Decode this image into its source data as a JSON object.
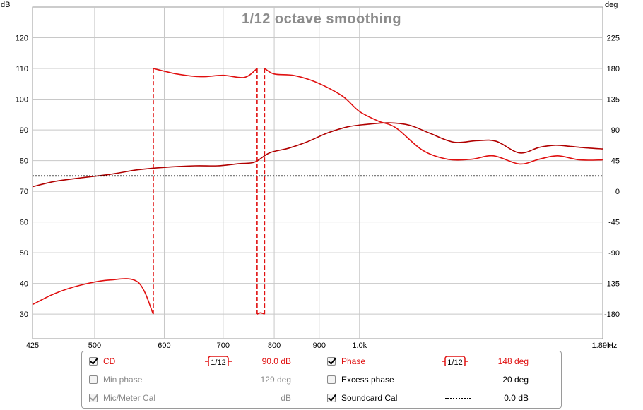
{
  "chart_data": {
    "type": "line",
    "title": "1/12 octave smoothing",
    "left_axis": {
      "unit": "dB",
      "ylim": [
        22,
        130
      ],
      "ticks": [
        120,
        110,
        100,
        90,
        80,
        70,
        60,
        50,
        40,
        30
      ]
    },
    "right_axis": {
      "unit": "deg",
      "ylim": [
        -180,
        180
      ],
      "ticks": [
        225,
        180,
        135,
        90,
        45,
        0,
        -45,
        -90,
        -135,
        -180
      ]
    },
    "x_axis": {
      "scale": "log",
      "unit": "Hz",
      "xlim": [
        425,
        1890
      ],
      "ticks": [
        {
          "v": 425,
          "label": "425"
        },
        {
          "v": 500,
          "label": "500"
        },
        {
          "v": 600,
          "label": "600"
        },
        {
          "v": 700,
          "label": "700"
        },
        {
          "v": 800,
          "label": "800"
        },
        {
          "v": 900,
          "label": "900"
        },
        {
          "v": 1000,
          "label": "1.0k"
        },
        {
          "v": 1890,
          "label": "1.89k"
        }
      ],
      "unit_label": "Hz"
    },
    "grid": true,
    "series": [
      {
        "name": "CD",
        "axis": "left",
        "color": "#b00000",
        "x": [
          425,
          450,
          480,
          520,
          560,
          600,
          650,
          690,
          730,
          760,
          790,
          830,
          870,
          920,
          970,
          1020,
          1080,
          1140,
          1200,
          1280,
          1360,
          1430,
          1520,
          1600,
          1670,
          1740,
          1800,
          1890
        ],
        "y": [
          71.5,
          73.2,
          74.3,
          75.5,
          77.0,
          77.8,
          78.3,
          78.3,
          79.0,
          79.5,
          82.5,
          84.0,
          86.0,
          89.0,
          91.0,
          91.8,
          92.3,
          91.5,
          89.0,
          86.0,
          86.5,
          86.3,
          82.5,
          84.3,
          85.0,
          84.6,
          84.2,
          83.8
        ]
      },
      {
        "name": "Phase",
        "axis": "right",
        "color": "#e01010",
        "segments": [
          {
            "x": [
              425,
              450,
              480,
              520,
              560,
              583
            ],
            "y": [
              -166,
              -150,
              -138,
              -130,
              -133,
              -180
            ],
            "dashed_end": true
          },
          {
            "x": [
              583,
              620,
              660,
              700,
              740,
              765
            ],
            "y": [
              180,
              172,
              168,
              170,
              167,
              180
            ],
            "dashed_start": true,
            "dashed_end": true
          },
          {
            "x": [
              765,
              772,
              780
            ],
            "y": [
              -180,
              -178,
              -180
            ],
            "dashed_start": true,
            "dashed_end": true
          },
          {
            "x": [
              780,
              800,
              840,
              880,
              920,
              960,
              1000,
              1050,
              1100,
              1180,
              1260,
              1340,
              1420,
              1520,
              1600,
              1680,
              1780,
              1890
            ],
            "y": [
              180,
              172,
              170,
              163,
              152,
              138,
              117,
              103,
              93,
              60,
              47,
              47,
              52,
              40,
              47,
              52,
              46,
              46
            ],
            "dashed_start": true
          }
        ]
      },
      {
        "name": "Soundcard Cal",
        "axis": "left",
        "color": "#000000",
        "style": "dotted",
        "x": [
          425,
          1890
        ],
        "y": [
          75,
          75
        ]
      }
    ]
  },
  "legend": {
    "rows": [
      {
        "left": {
          "label": "CD",
          "checked": true,
          "enabled": true,
          "color": "red",
          "smoothing": "1/12",
          "value": "90.0 dB",
          "value_color": "red"
        },
        "right": {
          "label": "Phase",
          "checked": true,
          "enabled": true,
          "color": "red",
          "smoothing": "1/12",
          "value": "148 deg",
          "value_color": "red"
        }
      },
      {
        "left": {
          "label": "Min phase",
          "checked": false,
          "enabled": false,
          "color": "grey",
          "value": "129 deg",
          "value_color": "grey"
        },
        "right": {
          "label": "Excess phase",
          "checked": false,
          "enabled": true,
          "color": "black",
          "value": "20 deg",
          "value_color": "black"
        }
      },
      {
        "left": {
          "label": "Mic/Meter Cal",
          "checked": true,
          "enabled": false,
          "color": "grey",
          "value": "dB",
          "value_color": "grey"
        },
        "right": {
          "label": "Soundcard Cal",
          "checked": true,
          "enabled": true,
          "color": "black",
          "value": "0.0 dB",
          "value_color": "black"
        }
      }
    ]
  }
}
